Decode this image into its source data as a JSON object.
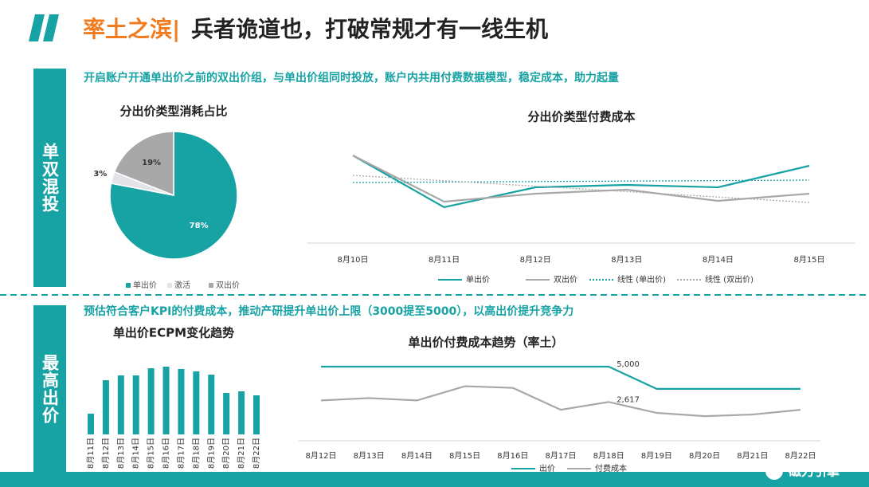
{
  "header": {
    "title_accent": "率土之滨|",
    "title": "兵者诡道也，打破常规才有一线生机"
  },
  "sections": [
    {
      "label": "单双混投",
      "subtitle": "开启账户开通单出价之前的双出价组，与单出价组同时投放，账户内共用付费数据模型，稳定成本，助力起量"
    },
    {
      "label": "最高出价",
      "subtitle": "预估符合客户KPI的付费成本，推动产研提升单出价上限（3000提至5000），以高出价提升竞争力"
    }
  ],
  "logo": "磁力引擎",
  "chart_data": [
    {
      "type": "pie",
      "title": "分出价类型消耗占比",
      "categories": [
        "单出价",
        "激活",
        "双出价"
      ],
      "values": [
        78,
        3,
        19
      ],
      "value_labels": [
        "78%",
        "3%",
        "19%"
      ],
      "colors": [
        "#17a2a4",
        "#e3e3ea",
        "#a8a8a8"
      ],
      "legend": "bottom"
    },
    {
      "type": "line",
      "title": "分出价类型付费成本",
      "categories": [
        "8月10日",
        "8月11日",
        "8月12日",
        "8月13日",
        "8月14日",
        "8月15日"
      ],
      "series": [
        {
          "name": "单出价",
          "color": "#17a2a4",
          "style": "solid",
          "values": [
            115,
            50,
            75,
            78,
            75,
            102
          ]
        },
        {
          "name": "双出价",
          "color": "#a8a8a8",
          "style": "solid",
          "values": [
            115,
            57,
            67,
            72,
            58,
            67
          ]
        },
        {
          "name": "线性 (单出价)",
          "color": "#17a2a4",
          "style": "dotted",
          "values": [
            81,
            81.6,
            82.2,
            82.8,
            83.4,
            84
          ]
        },
        {
          "name": "线性 (双出价)",
          "color": "#a8a8a8",
          "style": "dotted",
          "values": [
            90,
            83.2,
            76.4,
            69.6,
            62.8,
            56
          ]
        }
      ],
      "ylim": [
        0,
        130
      ],
      "legend": "bottom"
    },
    {
      "type": "bar",
      "title": "单出价ECPM变化趋势",
      "categories": [
        "8月11日",
        "8月12日",
        "8月13日",
        "8月14日",
        "8月15日",
        "8月16日",
        "8月17日",
        "8月18日",
        "8月19日",
        "8月20日",
        "8月21日",
        "8月22日"
      ],
      "values": [
        26,
        68,
        74,
        74,
        83,
        85,
        82,
        79,
        75,
        52,
        54,
        49
      ],
      "color": "#17a2a4",
      "ylim": [
        0,
        100
      ]
    },
    {
      "type": "line",
      "title": "单出价付费成本趋势（率土）",
      "categories": [
        "8月12日",
        "8月13日",
        "8月14日",
        "8月15日",
        "8月16日",
        "8月17日",
        "8月18日",
        "8月19日",
        "8月20日",
        "8月21日",
        "8月22日"
      ],
      "series": [
        {
          "name": "出价",
          "color": "#17a2a4",
          "style": "solid",
          "values": [
            5000,
            5000,
            5000,
            5000,
            5000,
            5000,
            5000,
            3500,
            3500,
            3500,
            3500
          ],
          "value_labels": [
            null,
            null,
            null,
            null,
            null,
            null,
            "5,000",
            null,
            null,
            null,
            null
          ]
        },
        {
          "name": "付费成本",
          "color": "#a8a8a8",
          "style": "solid",
          "values": [
            2720,
            2880,
            2720,
            3680,
            3570,
            2090,
            2617,
            1880,
            1660,
            1770,
            2090
          ],
          "value_labels": [
            null,
            null,
            null,
            null,
            null,
            null,
            "2,617",
            null,
            null,
            null,
            null
          ]
        }
      ],
      "ylim": [
        0,
        6000
      ],
      "legend": "bottom"
    }
  ]
}
